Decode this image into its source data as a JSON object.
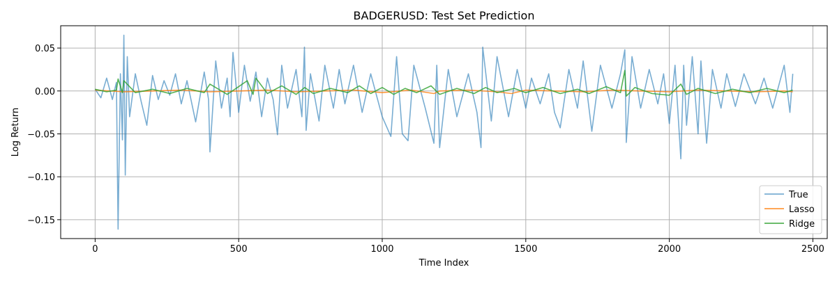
{
  "chart_data": {
    "type": "line",
    "title": "BADGERUSD: Test Set Prediction",
    "xlabel": "Time Index",
    "ylabel": "Log Return",
    "xlim": [
      -120,
      2550
    ],
    "ylim": [
      -0.172,
      0.076
    ],
    "xticks": [
      0,
      500,
      1000,
      1500,
      2000,
      2500
    ],
    "xtick_labels": [
      "0",
      "500",
      "1000",
      "1500",
      "2000",
      "2500"
    ],
    "yticks": [
      -0.15,
      -0.1,
      -0.05,
      0.0,
      0.05
    ],
    "ytick_labels": [
      "−0.15",
      "−0.10",
      "−0.05",
      "0.00",
      "0.05"
    ],
    "grid": true,
    "legend_position": "lower-right",
    "colors": {
      "True": "#1f77b4",
      "Lasso": "#ff7f0e",
      "Ridge": "#2ca02c"
    },
    "series": [
      {
        "name": "True",
        "x": [
          0,
          20,
          40,
          60,
          74,
          80,
          88,
          95,
          100,
          105,
          112,
          120,
          140,
          160,
          180,
          200,
          220,
          240,
          260,
          280,
          300,
          320,
          350,
          380,
          395,
          400,
          420,
          440,
          460,
          470,
          480,
          500,
          520,
          540,
          560,
          580,
          600,
          620,
          635,
          650,
          670,
          700,
          720,
          729,
          735,
          750,
          780,
          800,
          830,
          850,
          870,
          900,
          930,
          960,
          1000,
          1030,
          1050,
          1070,
          1090,
          1110,
          1150,
          1180,
          1190,
          1200,
          1230,
          1260,
          1300,
          1330,
          1344,
          1350,
          1380,
          1400,
          1440,
          1470,
          1500,
          1520,
          1550,
          1580,
          1600,
          1620,
          1650,
          1680,
          1700,
          1730,
          1760,
          1800,
          1830,
          1845,
          1850,
          1870,
          1900,
          1930,
          1960,
          1980,
          2000,
          2020,
          2040,
          2050,
          2060,
          2080,
          2100,
          2110,
          2130,
          2150,
          2180,
          2200,
          2230,
          2260,
          2300,
          2330,
          2360,
          2400,
          2420,
          2430
        ],
        "y": [
          0.002,
          -0.008,
          0.015,
          -0.01,
          0.01,
          -0.161,
          0.02,
          -0.057,
          0.065,
          -0.098,
          0.04,
          -0.03,
          0.02,
          -0.012,
          -0.04,
          0.018,
          -0.01,
          0.012,
          -0.005,
          0.02,
          -0.015,
          0.012,
          -0.036,
          0.022,
          -0.01,
          -0.071,
          0.035,
          -0.02,
          0.015,
          -0.03,
          0.045,
          -0.025,
          0.03,
          -0.012,
          0.022,
          -0.03,
          0.015,
          -0.01,
          -0.051,
          0.03,
          -0.02,
          0.025,
          -0.03,
          0.051,
          -0.046,
          0.02,
          -0.035,
          0.03,
          -0.02,
          0.025,
          -0.015,
          0.03,
          -0.025,
          0.02,
          -0.03,
          -0.053,
          0.04,
          -0.05,
          -0.058,
          0.03,
          -0.02,
          -0.061,
          0.03,
          -0.066,
          0.025,
          -0.03,
          0.02,
          -0.025,
          -0.066,
          0.051,
          -0.035,
          0.04,
          -0.03,
          0.025,
          -0.02,
          0.015,
          -0.015,
          0.02,
          -0.025,
          -0.043,
          0.025,
          -0.02,
          0.035,
          -0.047,
          0.03,
          -0.02,
          0.02,
          0.048,
          -0.06,
          0.04,
          -0.02,
          0.025,
          -0.015,
          0.02,
          -0.038,
          0.03,
          -0.079,
          0.03,
          -0.04,
          0.04,
          -0.05,
          0.035,
          -0.061,
          0.025,
          -0.02,
          0.02,
          -0.018,
          0.02,
          -0.015,
          0.015,
          -0.02,
          0.03,
          -0.025,
          0.02
        ]
      },
      {
        "name": "Lasso",
        "x": [
          0,
          100,
          200,
          300,
          400,
          500,
          600,
          700,
          800,
          900,
          1000,
          1100,
          1180,
          1200,
          1300,
          1400,
          1450,
          1500,
          1600,
          1700,
          1800,
          1900,
          2000,
          2100,
          2200,
          2300,
          2400,
          2430
        ],
        "y": [
          0.001,
          -0.001,
          0.0,
          0.001,
          -0.001,
          0.0,
          0.001,
          -0.001,
          0.0,
          0.001,
          -0.002,
          0.001,
          -0.003,
          0.0,
          0.001,
          -0.001,
          -0.003,
          0.001,
          0.0,
          -0.001,
          0.001,
          0.0,
          -0.001,
          0.001,
          0.0,
          -0.001,
          0.0,
          -0.001
        ]
      },
      {
        "name": "Ridge",
        "x": [
          0,
          40,
          74,
          80,
          95,
          100,
          140,
          200,
          260,
          320,
          380,
          400,
          460,
          500,
          530,
          550,
          560,
          600,
          650,
          700,
          730,
          760,
          820,
          880,
          920,
          960,
          1000,
          1040,
          1080,
          1120,
          1170,
          1200,
          1260,
          1320,
          1360,
          1400,
          1460,
          1500,
          1560,
          1620,
          1680,
          1720,
          1780,
          1830,
          1845,
          1850,
          1880,
          1940,
          2000,
          2040,
          2060,
          2100,
          2160,
          2220,
          2280,
          2340,
          2400,
          2430
        ],
        "y": [
          0.002,
          -0.001,
          0.001,
          0.014,
          -0.002,
          0.012,
          -0.002,
          0.002,
          -0.003,
          0.003,
          -0.002,
          0.008,
          -0.004,
          0.005,
          0.012,
          -0.004,
          0.015,
          -0.003,
          0.006,
          -0.004,
          0.004,
          -0.003,
          0.003,
          -0.002,
          0.006,
          -0.003,
          0.004,
          -0.004,
          0.003,
          -0.002,
          0.006,
          -0.004,
          0.003,
          -0.003,
          0.004,
          -0.002,
          0.003,
          -0.002,
          0.004,
          -0.003,
          0.002,
          -0.003,
          0.005,
          -0.002,
          0.024,
          -0.006,
          0.004,
          -0.003,
          -0.005,
          0.008,
          -0.004,
          0.003,
          -0.003,
          0.002,
          -0.002,
          0.003,
          -0.002,
          0.001
        ]
      }
    ]
  }
}
